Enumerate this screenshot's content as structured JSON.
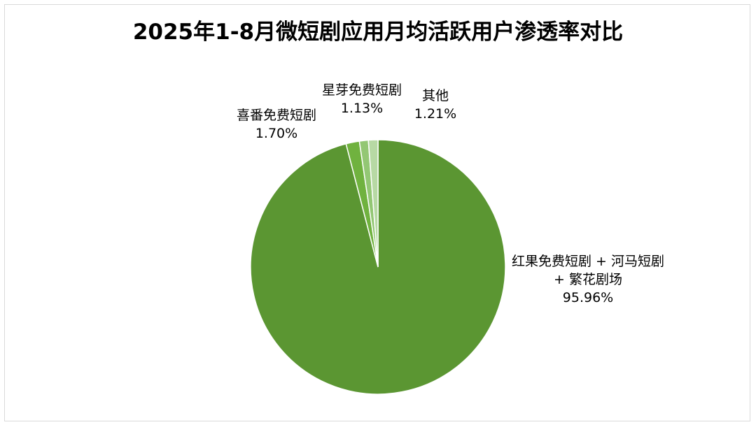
{
  "chart_data": {
    "type": "pie",
    "title": "2025年1-8月微短剧应用月均活跃用户渗透率对比",
    "slices": [
      {
        "label_lines": [
          "红果免费短剧 + 河马短剧",
          "+ 繁花剧场"
        ],
        "value": 95.96,
        "value_label": "95.96%",
        "color": "#5b9632"
      },
      {
        "label_lines": [
          "喜番免费短剧"
        ],
        "value": 1.7,
        "value_label": "1.70%",
        "color": "#70b23f"
      },
      {
        "label_lines": [
          "星芽免费短剧"
        ],
        "value": 1.13,
        "value_label": "1.13%",
        "color": "#93c774"
      },
      {
        "label_lines": [
          "其他"
        ],
        "value": 1.21,
        "value_label": "1.21%",
        "color": "#b7d9a4"
      }
    ],
    "start_angle": "12 o'clock",
    "direction": "clockwise",
    "legend": "none",
    "slice_border": "#ffffff"
  }
}
